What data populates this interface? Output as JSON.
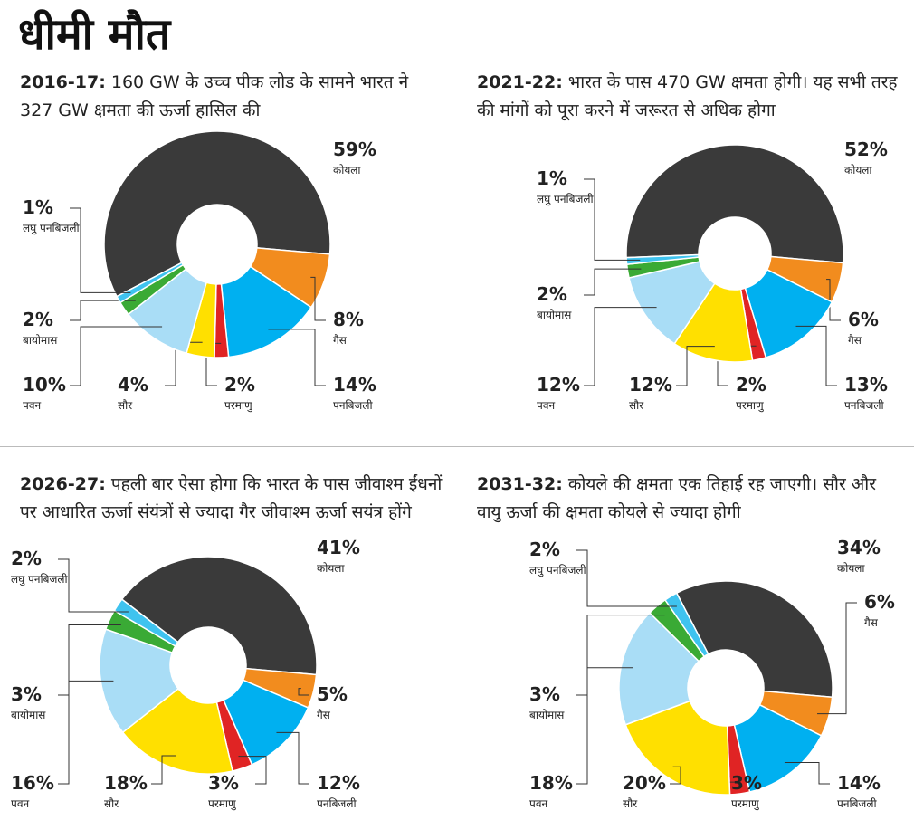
{
  "title": "धीमी मौत",
  "chart_data": [
    {
      "type": "pie",
      "year": "2016-17:",
      "subtitle": "160 GW के उच्च पीक लोड के सामने भारत ने 327 GW क्षमता की ऊर्जा हासिल की",
      "categories": [
        "कोयला",
        "गैस",
        "पनबिजली",
        "परमाणु",
        "सौर",
        "पवन",
        "बायोमास",
        "लघु पनबिजली"
      ],
      "values": [
        59,
        8,
        14,
        2,
        4,
        10,
        2,
        1
      ],
      "value_labels": [
        "59%",
        "8%",
        "14%",
        "2%",
        "4%",
        "10%",
        "2%",
        "1%"
      ],
      "colors": [
        "#3a3a3a",
        "#f28c1e",
        "#00b0f0",
        "#e02424",
        "#ffe000",
        "#a9ddf6",
        "#3aaa35",
        "#3fc3ef"
      ]
    },
    {
      "type": "pie",
      "year": "2021-22:",
      "subtitle": "भारत के पास 470 GW क्षमता होगी। यह सभी तरह की मांगों को पूरा करने में जरूरत से अधिक होगा",
      "categories": [
        "कोयला",
        "गैस",
        "पनबिजली",
        "परमाणु",
        "सौर",
        "पवन",
        "बायोमास",
        "लघु पनबिजली"
      ],
      "values": [
        52,
        6,
        13,
        2,
        12,
        12,
        2,
        1
      ],
      "value_labels": [
        "52%",
        "6%",
        "13%",
        "2%",
        "12%",
        "12%",
        "2%",
        "1%"
      ],
      "colors": [
        "#3a3a3a",
        "#f28c1e",
        "#00b0f0",
        "#e02424",
        "#ffe000",
        "#a9ddf6",
        "#3aaa35",
        "#3fc3ef"
      ]
    },
    {
      "type": "pie",
      "year": "2026-27:",
      "subtitle": "पहली बार ऐसा होगा कि भारत के पास जीवाश्म ईंधनों पर आधारित ऊर्जा संयंत्रों से ज्यादा गैर जीवाश्म ऊर्जा सयंत्र होंगे",
      "categories": [
        "कोयला",
        "गैस",
        "पनबिजली",
        "परमाणु",
        "सौर",
        "पवन",
        "बायोमास",
        "लघु पनबिजली"
      ],
      "values": [
        41,
        5,
        12,
        3,
        18,
        16,
        3,
        2
      ],
      "value_labels": [
        "41%",
        "5%",
        "12%",
        "3%",
        "18%",
        "16%",
        "3%",
        "2%"
      ],
      "colors": [
        "#3a3a3a",
        "#f28c1e",
        "#00b0f0",
        "#e02424",
        "#ffe000",
        "#a9ddf6",
        "#3aaa35",
        "#3fc3ef"
      ]
    },
    {
      "type": "pie",
      "year": "2031-32:",
      "subtitle": "कोयले की क्षमता एक तिहाई रह जाएगी। सौर और वायु ऊर्जा की क्षमता कोयले से ज्यादा होगी",
      "categories": [
        "कोयला",
        "गैस",
        "पनबिजली",
        "परमाणु",
        "सौर",
        "पवन",
        "बायोमास",
        "लघु पनबिजली"
      ],
      "values": [
        34,
        6,
        14,
        3,
        20,
        18,
        3,
        2
      ],
      "value_labels": [
        "34%",
        "6%",
        "14%",
        "3%",
        "20%",
        "18%",
        "3%",
        "2%"
      ],
      "colors": [
        "#3a3a3a",
        "#f28c1e",
        "#00b0f0",
        "#e02424",
        "#ffe000",
        "#a9ddf6",
        "#3aaa35",
        "#3fc3ef"
      ]
    }
  ]
}
